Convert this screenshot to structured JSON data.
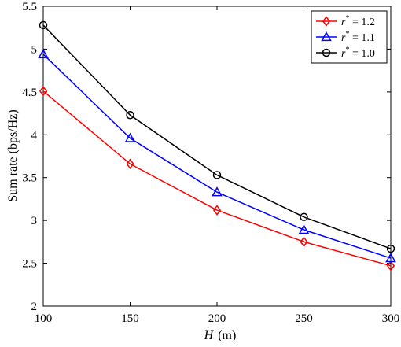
{
  "chart_data": {
    "type": "line",
    "x": [
      100,
      150,
      200,
      250,
      300
    ],
    "xlabel": {
      "symbol": "H",
      "unit": "(m)"
    },
    "ylabel": "Sum rate (bps/Hz)",
    "xlim": [
      100,
      300
    ],
    "ylim": [
      2,
      5.5
    ],
    "xticks": [
      "100",
      "150",
      "200",
      "250",
      "300"
    ],
    "yticks": [
      "2",
      "2.5",
      "3",
      "3.5",
      "4",
      "4.5",
      "5",
      "5.5"
    ],
    "grid": false,
    "legend_position": "top-right",
    "series": [
      {
        "name": "r* = 1.2",
        "name_parts": {
          "var": "r",
          "sup": "*",
          "rest": " = 1.2"
        },
        "marker": "diamond",
        "color": "#ff0000",
        "values": [
          4.51,
          3.66,
          3.12,
          2.75,
          2.47
        ]
      },
      {
        "name": "r* = 1.1",
        "name_parts": {
          "var": "r",
          "sup": "*",
          "rest": " = 1.1"
        },
        "marker": "triangle",
        "color": "#0000ff",
        "values": [
          4.94,
          3.96,
          3.33,
          2.89,
          2.56
        ]
      },
      {
        "name": "r* = 1.0",
        "name_parts": {
          "var": "r",
          "sup": "*",
          "rest": " = 1.0"
        },
        "marker": "circle",
        "color": "#000000",
        "values": [
          5.28,
          4.23,
          3.53,
          3.04,
          2.67
        ]
      }
    ]
  }
}
